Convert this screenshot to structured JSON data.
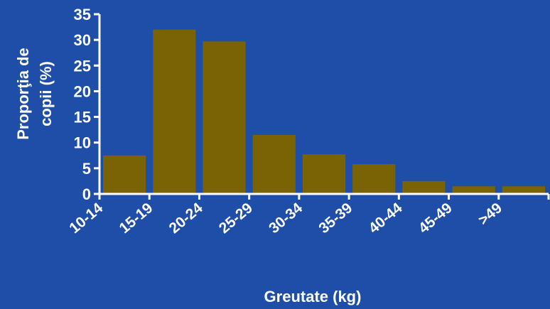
{
  "colors": {
    "background": "#1f4ea8",
    "bar": "#7a6304",
    "axis": "#ffffff",
    "text": "#ffffff"
  },
  "chart_data": {
    "type": "bar",
    "categories": [
      "10-14",
      "15-19",
      "20-24",
      "25-29",
      "30-34",
      "35-39",
      "40-44",
      "45-49",
      ">49"
    ],
    "values": [
      7.5,
      32,
      29.7,
      11.5,
      7.7,
      5.8,
      2.5,
      1.5,
      1.5
    ],
    "xlabel": "Greutate (kg)",
    "ylabel_line1": "Proporţia de",
    "ylabel_line2": "copii (%)",
    "ylim": [
      0,
      35
    ],
    "yticks": [
      0,
      5,
      10,
      15,
      20,
      25,
      30,
      35
    ],
    "grid": false,
    "legend": "none"
  }
}
